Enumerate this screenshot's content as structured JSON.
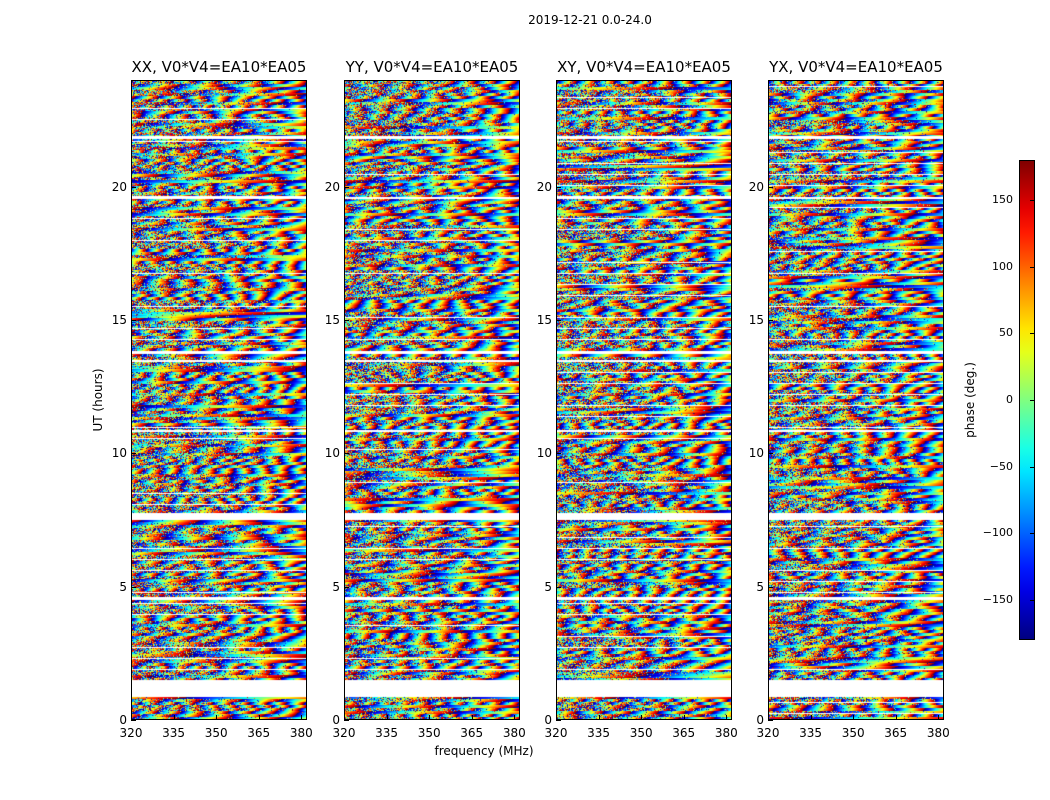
{
  "chart_data": {
    "type": "heatmap",
    "title": "2019-12-21 0.0-24.0",
    "xlabel": "frequency (MHz)",
    "ylabel": "UT (hours)",
    "xlim": [
      320,
      382
    ],
    "ylim": [
      0,
      24
    ],
    "xticks": [
      320,
      335,
      350,
      365,
      380
    ],
    "yticks": [
      0,
      5,
      10,
      15,
      20
    ],
    "panels": [
      {
        "title": "XX, V0*V4=EA10*EA05"
      },
      {
        "title": "YY, V0*V4=EA10*EA05"
      },
      {
        "title": "XY, V0*V4=EA10*EA05"
      },
      {
        "title": "YX, V0*V4=EA10*EA05"
      }
    ],
    "colorbar": {
      "label": "phase (deg.)",
      "range": [
        -180,
        180
      ],
      "ticks": [
        -150,
        -100,
        -50,
        0,
        50,
        100,
        150
      ],
      "tick_labels": [
        "−150",
        "−100",
        "−50",
        "0",
        "50",
        "100",
        "150"
      ],
      "colormap": "jet"
    },
    "data_gaps_hours": [
      [
        0.9,
        1.5
      ],
      [
        4.55,
        4.65
      ],
      [
        7.55,
        7.8
      ],
      [
        10.85,
        10.95
      ],
      [
        13.5,
        13.55
      ],
      [
        13.8,
        13.9
      ],
      [
        19.6,
        19.65
      ],
      [
        21.85,
        21.95
      ]
    ]
  }
}
